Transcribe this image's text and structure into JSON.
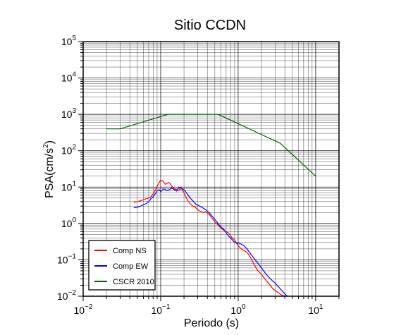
{
  "chart_data": {
    "type": "line",
    "title": "Sitio CCDN",
    "xlabel": "Periodo (s)",
    "ylabel_base": "PSA(cm/s",
    "ylabel_sup": "2",
    "ylabel_close": ")",
    "x_scale": "log",
    "y_scale": "log",
    "xlim": [
      0.01,
      20
    ],
    "ylim": [
      0.01,
      100000
    ],
    "grid": true,
    "legend_position": "bottom-left",
    "x_ticks": [
      {
        "value": 0.01,
        "base": "10",
        "exp": "−2"
      },
      {
        "value": 0.1,
        "base": "10",
        "exp": "−1"
      },
      {
        "value": 1,
        "base": "10",
        "exp": "0"
      },
      {
        "value": 10,
        "base": "10",
        "exp": "1"
      }
    ],
    "y_ticks": [
      {
        "value": 0.01,
        "base": "10",
        "exp": "−2"
      },
      {
        "value": 0.1,
        "base": "10",
        "exp": "−1"
      },
      {
        "value": 1,
        "base": "10",
        "exp": "0"
      },
      {
        "value": 10,
        "base": "10",
        "exp": "1"
      },
      {
        "value": 100,
        "base": "10",
        "exp": "2"
      },
      {
        "value": 1000,
        "base": "10",
        "exp": "3"
      },
      {
        "value": 10000,
        "base": "10",
        "exp": "4"
      },
      {
        "value": 100000,
        "base": "10",
        "exp": "5"
      }
    ],
    "series": [
      {
        "name": "Comp NS",
        "color": "#ff0000",
        "x": [
          0.045,
          0.05,
          0.055,
          0.06,
          0.065,
          0.07,
          0.075,
          0.08,
          0.085,
          0.09,
          0.095,
          0.1,
          0.105,
          0.11,
          0.115,
          0.12,
          0.125,
          0.13,
          0.14,
          0.15,
          0.16,
          0.17,
          0.18,
          0.19,
          0.2,
          0.21,
          0.22,
          0.24,
          0.26,
          0.28,
          0.3,
          0.32,
          0.35,
          0.38,
          0.42,
          0.46,
          0.5,
          0.55,
          0.6,
          0.65,
          0.7,
          0.75,
          0.8,
          0.9,
          1.0,
          1.1,
          1.2,
          1.3,
          1.4,
          1.5,
          1.6,
          1.8,
          2.0,
          2.2,
          2.5,
          2.8,
          3.2,
          3.6,
          4.0
        ],
        "y": [
          3.8,
          4.0,
          4.2,
          4.5,
          4.8,
          5.0,
          5.5,
          6.5,
          8.0,
          10.5,
          13.0,
          15.5,
          15.0,
          13.5,
          12.0,
          12.5,
          13.5,
          13.0,
          10.5,
          9.0,
          8.5,
          8.0,
          9.0,
          8.5,
          7.0,
          5.5,
          4.5,
          3.5,
          3.0,
          2.8,
          2.4,
          2.2,
          2.0,
          2.1,
          1.8,
          1.4,
          1.1,
          0.9,
          0.75,
          0.65,
          0.6,
          0.55,
          0.45,
          0.35,
          0.24,
          0.2,
          0.18,
          0.16,
          0.13,
          0.1,
          0.075,
          0.05,
          0.04,
          0.03,
          0.022,
          0.016,
          0.013,
          0.011,
          0.01
        ]
      },
      {
        "name": "Comp EW",
        "color": "#0000ff",
        "x": [
          0.045,
          0.05,
          0.055,
          0.06,
          0.065,
          0.07,
          0.075,
          0.08,
          0.085,
          0.09,
          0.095,
          0.1,
          0.11,
          0.12,
          0.13,
          0.14,
          0.15,
          0.16,
          0.17,
          0.18,
          0.19,
          0.2,
          0.22,
          0.24,
          0.26,
          0.28,
          0.3,
          0.32,
          0.35,
          0.38,
          0.42,
          0.46,
          0.5,
          0.55,
          0.6,
          0.65,
          0.7,
          0.75,
          0.8,
          0.9,
          1.0,
          1.1,
          1.2,
          1.3,
          1.4,
          1.6,
          1.8,
          2.0,
          2.3,
          2.6,
          3.0,
          3.4,
          3.8,
          4.3
        ],
        "y": [
          2.7,
          2.8,
          3.0,
          3.3,
          3.5,
          4.0,
          4.8,
          5.5,
          6.5,
          7.8,
          8.5,
          7.5,
          9.0,
          8.0,
          8.5,
          9.5,
          8.5,
          7.8,
          9.5,
          9.8,
          9.0,
          8.5,
          6.5,
          5.0,
          4.2,
          3.5,
          3.2,
          3.0,
          2.7,
          2.4,
          2.0,
          1.6,
          1.3,
          1.0,
          0.8,
          0.7,
          0.55,
          0.45,
          0.4,
          0.3,
          0.29,
          0.27,
          0.24,
          0.2,
          0.16,
          0.11,
          0.08,
          0.06,
          0.04,
          0.03,
          0.023,
          0.017,
          0.013,
          0.01
        ]
      },
      {
        "name": "CSCR 2010",
        "color": "#006400",
        "x": [
          0.02,
          0.03,
          0.125,
          0.55,
          3.5,
          10
        ],
        "y": [
          400,
          400,
          1000,
          1000,
          160,
          20
        ]
      }
    ]
  }
}
